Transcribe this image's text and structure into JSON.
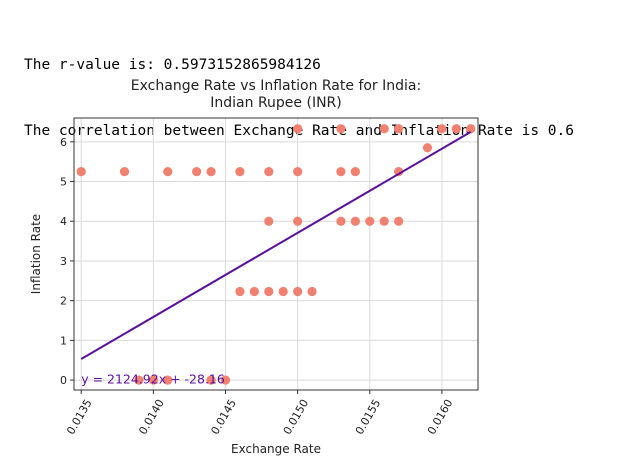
{
  "output": {
    "line1": "The r-value is: 0.5973152865984126",
    "line2": "The correlation between Exchange Rate and Inflation Rate is 0.6"
  },
  "chart_data": {
    "type": "scatter",
    "title_line1": "Exchange Rate vs Inflation Rate for India:",
    "title_line2": "Indian Rupee (INR)",
    "xlabel": "Exchange Rate",
    "ylabel": "Inflation Rate",
    "xlim": [
      0.01345,
      0.01625
    ],
    "ylim": [
      -0.25,
      6.6
    ],
    "xticks": [
      "0.0135",
      "0.0140",
      "0.0145",
      "0.0150",
      "0.0155",
      "0.0160"
    ],
    "xtick_values": [
      0.0135,
      0.014,
      0.0145,
      0.015,
      0.0155,
      0.016
    ],
    "yticks": [
      "0",
      "1",
      "2",
      "3",
      "4",
      "5",
      "6"
    ],
    "ytick_values": [
      0,
      1,
      2,
      3,
      4,
      5,
      6
    ],
    "grid": true,
    "points": [
      {
        "x": 0.0135,
        "y": 5.25
      },
      {
        "x": 0.0138,
        "y": 5.25
      },
      {
        "x": 0.0141,
        "y": 5.25
      },
      {
        "x": 0.0143,
        "y": 5.25
      },
      {
        "x": 0.0144,
        "y": 5.25
      },
      {
        "x": 0.0146,
        "y": 5.25
      },
      {
        "x": 0.0148,
        "y": 5.25
      },
      {
        "x": 0.015,
        "y": 5.25
      },
      {
        "x": 0.0153,
        "y": 5.25
      },
      {
        "x": 0.0154,
        "y": 5.25
      },
      {
        "x": 0.0157,
        "y": 5.25
      },
      {
        "x": 0.015,
        "y": 6.33
      },
      {
        "x": 0.0153,
        "y": 6.33
      },
      {
        "x": 0.0156,
        "y": 6.33
      },
      {
        "x": 0.0157,
        "y": 6.33
      },
      {
        "x": 0.016,
        "y": 6.33
      },
      {
        "x": 0.0161,
        "y": 6.33
      },
      {
        "x": 0.0162,
        "y": 6.33
      },
      {
        "x": 0.0159,
        "y": 5.85
      },
      {
        "x": 0.0148,
        "y": 4.0
      },
      {
        "x": 0.015,
        "y": 4.0
      },
      {
        "x": 0.0153,
        "y": 4.0
      },
      {
        "x": 0.0154,
        "y": 4.0
      },
      {
        "x": 0.0155,
        "y": 4.0
      },
      {
        "x": 0.0156,
        "y": 4.0
      },
      {
        "x": 0.0157,
        "y": 4.0
      },
      {
        "x": 0.0146,
        "y": 2.23
      },
      {
        "x": 0.0147,
        "y": 2.23
      },
      {
        "x": 0.0148,
        "y": 2.23
      },
      {
        "x": 0.0149,
        "y": 2.23
      },
      {
        "x": 0.015,
        "y": 2.23
      },
      {
        "x": 0.0151,
        "y": 2.23
      },
      {
        "x": 0.0139,
        "y": 0.0
      },
      {
        "x": 0.014,
        "y": 0.0
      },
      {
        "x": 0.0141,
        "y": 0.0
      },
      {
        "x": 0.0144,
        "y": 0.0
      },
      {
        "x": 0.0145,
        "y": 0.0
      }
    ],
    "regression": {
      "x_start": 0.0135,
      "x_end": 0.0162,
      "y_start": 0.53,
      "y_end": 6.25,
      "equation": "y = 2124.92x + -28.16"
    },
    "colors": {
      "points": "#f08070",
      "line": "#5a0f9e",
      "grid": "#d9d9d9",
      "axes": "#333333"
    }
  }
}
